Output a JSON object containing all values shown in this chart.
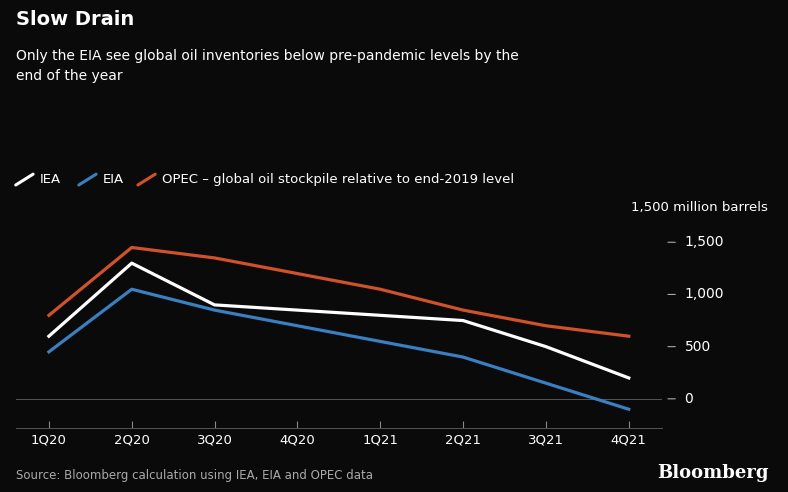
{
  "title_bold": "Slow Drain",
  "subtitle": "Only the EIA see global oil inventories below pre-pandemic levels by the\nend of the year",
  "ylabel_text": "1,500 million barrels",
  "source_text": "Source: Bloomberg calculation using IEA, EIA and OPEC data",
  "bloomberg_text": "Bloomberg",
  "x_labels": [
    "1Q20",
    "2Q20",
    "3Q20",
    "4Q20",
    "1Q21",
    "2Q21",
    "3Q21",
    "4Q21"
  ],
  "IEA": [
    600,
    1300,
    900,
    850,
    800,
    750,
    500,
    200
  ],
  "EIA": [
    450,
    1050,
    850,
    700,
    550,
    400,
    150,
    -100
  ],
  "OPEC": [
    800,
    1450,
    1350,
    1200,
    1050,
    850,
    700,
    600
  ],
  "IEA_color": "#ffffff",
  "EIA_color": "#3a7fc1",
  "OPEC_color": "#d0522a",
  "background_color": "#0a0a0a",
  "text_color": "#ffffff",
  "ytick_color": "#aaaaaa",
  "zero_line_color": "#888888",
  "yticks": [
    0,
    500,
    1000
  ],
  "ytick_labels": [
    "0",
    "500",
    "1,000"
  ],
  "ylim": [
    -280,
    1700
  ],
  "xlim": [
    -0.4,
    7.4
  ],
  "line_width": 2.3,
  "legend_items": [
    {
      "label": "IEA",
      "color": "#ffffff"
    },
    {
      "label": "EIA",
      "color": "#3a7fc1"
    },
    {
      "label": "OPEC – global oil stockpile relative to end-2019 level",
      "color": "#d0522a"
    }
  ]
}
